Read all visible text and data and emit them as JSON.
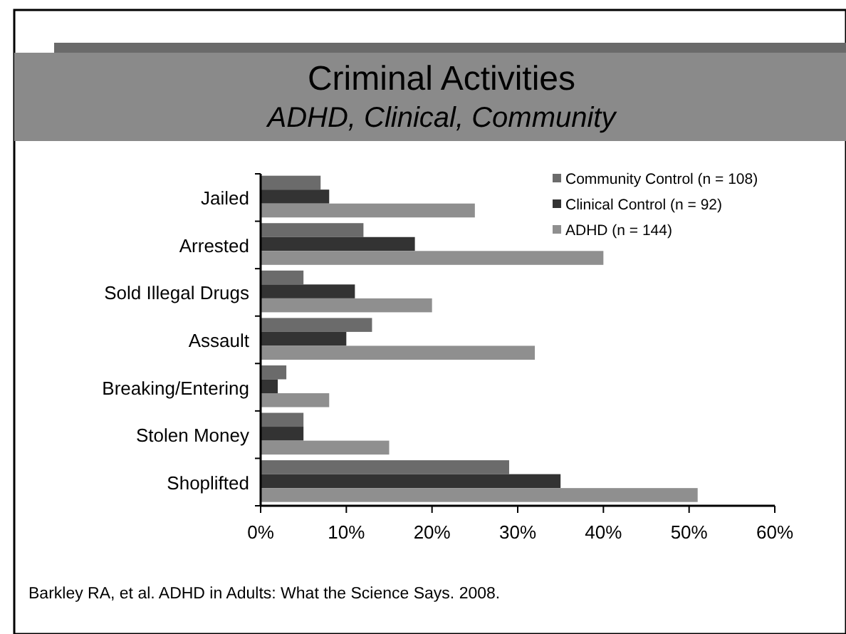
{
  "chart_data": {
    "type": "bar",
    "orientation": "horizontal",
    "title": "Criminal Activities",
    "subtitle": "ADHD, Clinical, Community",
    "categories": [
      "Jailed",
      "Arrested",
      "Sold Illegal Drugs",
      "Assault",
      "Breaking/Entering",
      "Stolen Money",
      "Shoplifted"
    ],
    "series": [
      {
        "name": "Community Control (n = 108)",
        "color": "#6b6b6b",
        "values": [
          7,
          12,
          5,
          13,
          3,
          5,
          29
        ]
      },
      {
        "name": "Clinical Control (n = 92)",
        "color": "#333333",
        "values": [
          8,
          18,
          11,
          10,
          2,
          5,
          35
        ]
      },
      {
        "name": "ADHD (n = 144)",
        "color": "#8f8f8f",
        "values": [
          25,
          40,
          20,
          32,
          8,
          15,
          51
        ]
      }
    ],
    "xlim": [
      0,
      60
    ],
    "xticks": [
      {
        "value": 0,
        "label": "0%"
      },
      {
        "value": 10,
        "label": "10%"
      },
      {
        "value": 20,
        "label": "20%"
      },
      {
        "value": 30,
        "label": "30%"
      },
      {
        "value": 40,
        "label": "40%"
      },
      {
        "value": 50,
        "label": "50%"
      },
      {
        "value": 60,
        "label": "60%"
      }
    ],
    "grid": false,
    "legend": "top right",
    "annotations": [
      "Barkley RA, et al. ADHD in Adults: What the Science Says. 2008."
    ]
  }
}
